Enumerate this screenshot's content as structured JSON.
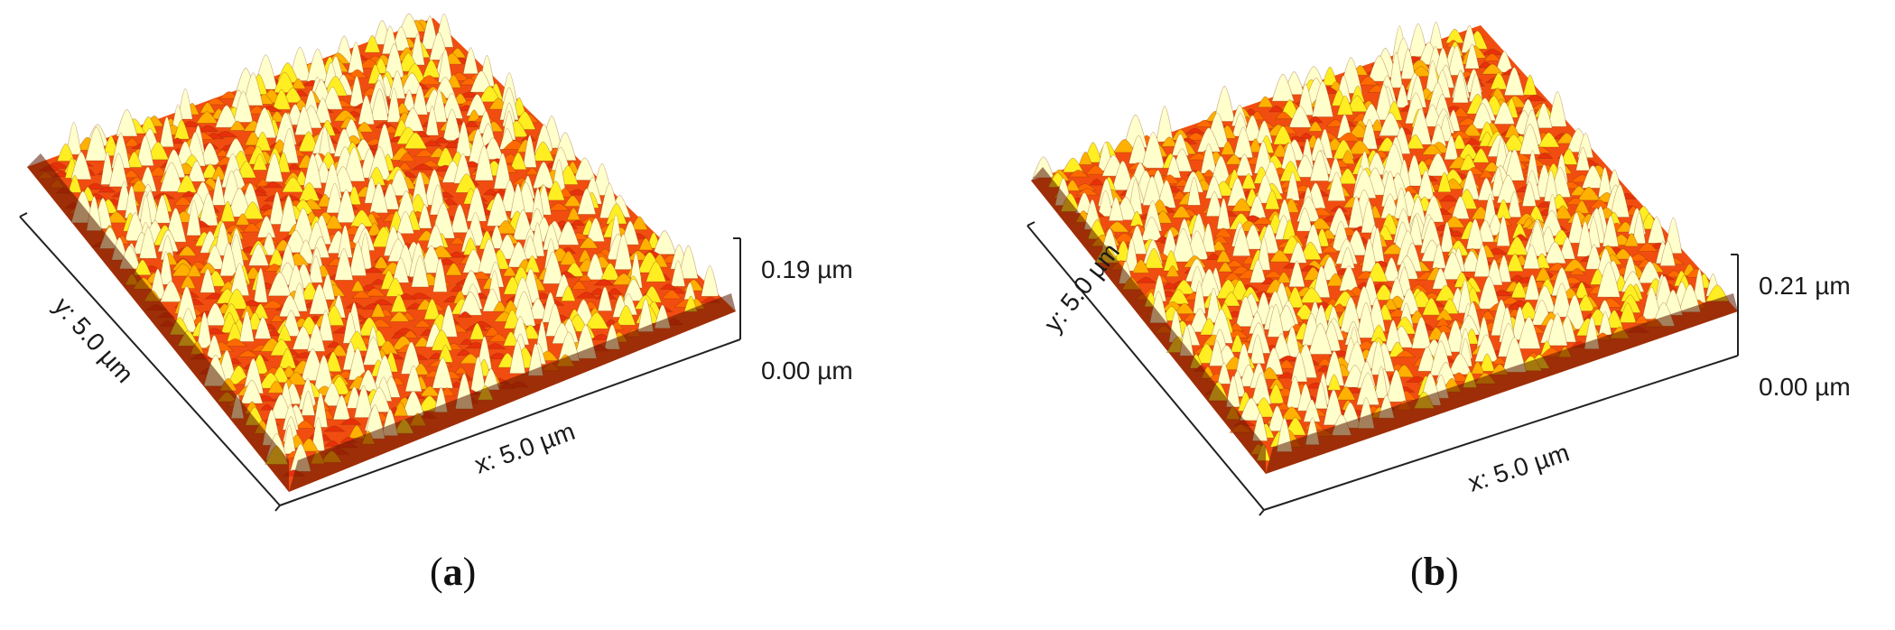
{
  "figure": {
    "panels": [
      {
        "id": "a",
        "caption": "a",
        "x_label": "x: 5.0 µm",
        "y_label": "y: 5.0 µm",
        "z_max_label": "0.19 µm",
        "z_min_label": "0.00 µm",
        "surface_gradient": [
          "#6b1d00",
          "#e8300a",
          "#ff6a00",
          "#ffb000",
          "#ffee22",
          "#ffffcc"
        ]
      },
      {
        "id": "b",
        "caption": "b",
        "x_label": "x: 5.0 µm",
        "y_label": "y: 5.0 µm",
        "z_max_label": "0.21 µm",
        "z_min_label": "0.00 µm",
        "surface_gradient": [
          "#6b1d00",
          "#e8300a",
          "#ff6a00",
          "#ffb000",
          "#ffee22",
          "#ffffcc"
        ]
      }
    ]
  }
}
